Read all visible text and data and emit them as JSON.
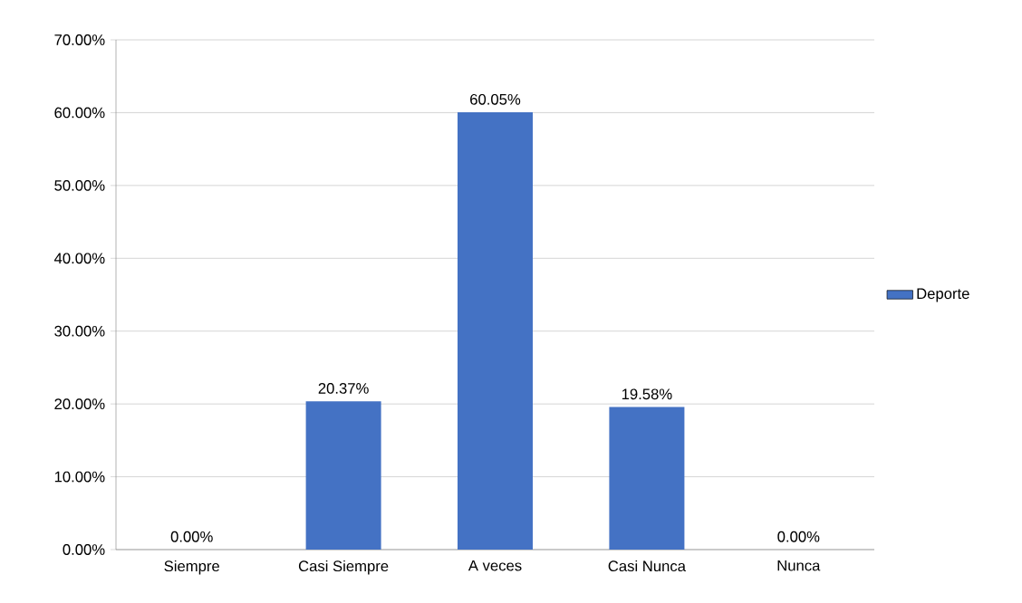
{
  "chart_data": {
    "type": "bar",
    "categories": [
      "Siempre",
      "Casi Siempre",
      "A veces",
      "Casi Nunca",
      "Nunca"
    ],
    "series": [
      {
        "name": "Deporte",
        "color": "#4472c4",
        "values": [
          0,
          20.37,
          60.05,
          19.58,
          0
        ],
        "value_labels": [
          "0.00%",
          "20.37%",
          "60.05%",
          "19.58%",
          "0.00%"
        ]
      }
    ],
    "ylim": [
      0,
      70
    ],
    "yticks": [
      {
        "value": 0,
        "label": "0.00%"
      },
      {
        "value": 10,
        "label": "10.00%"
      },
      {
        "value": 20,
        "label": "20.00%"
      },
      {
        "value": 30,
        "label": "30.00%"
      },
      {
        "value": 40,
        "label": "40.00%"
      },
      {
        "value": 50,
        "label": "50.00%"
      },
      {
        "value": 60,
        "label": "60.00%"
      },
      {
        "value": 70,
        "label": "70.00%"
      }
    ],
    "grid": "y",
    "legend": "right"
  }
}
